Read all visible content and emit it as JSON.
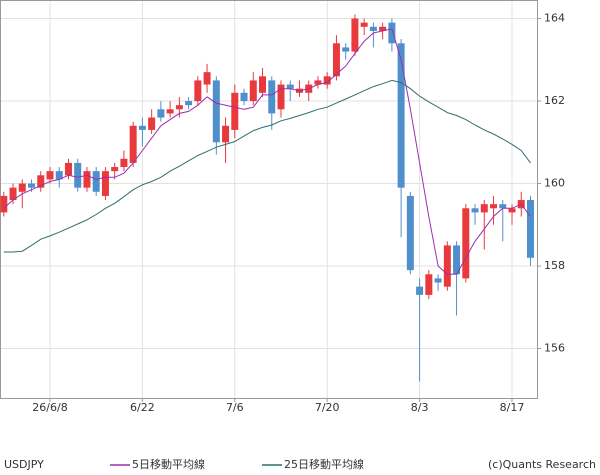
{
  "chart_data": {
    "type": "candlestick",
    "title": "USDJPY",
    "credit": "(c)Quants Research",
    "categories": [
      null,
      null,
      null,
      null,
      null,
      "26/6/8",
      null,
      null,
      null,
      null,
      null,
      null,
      null,
      null,
      null,
      "6/22",
      null,
      null,
      null,
      null,
      null,
      null,
      null,
      null,
      null,
      "7/6",
      null,
      null,
      null,
      null,
      null,
      null,
      null,
      null,
      null,
      "7/20",
      null,
      null,
      null,
      null,
      null,
      null,
      null,
      null,
      null,
      "8/3",
      null,
      null,
      null,
      null,
      null,
      null,
      null,
      null,
      null,
      "8/17",
      null,
      null
    ],
    "open": [
      159.3,
      159.6,
      159.8,
      160.0,
      159.9,
      160.1,
      160.3,
      160.2,
      160.5,
      159.9,
      160.3,
      159.7,
      160.3,
      160.4,
      160.5,
      161.4,
      161.3,
      161.8,
      161.7,
      161.8,
      162.0,
      162.0,
      162.4,
      162.5,
      161.0,
      161.3,
      162.2,
      162.0,
      162.2,
      162.5,
      161.8,
      162.4,
      162.2,
      162.2,
      162.4,
      162.4,
      162.6,
      163.3,
      163.2,
      163.8,
      163.8,
      163.7,
      163.9,
      163.4,
      159.7,
      157.5,
      157.3,
      157.7,
      157.5,
      158.5,
      157.7,
      159.4,
      159.3,
      159.4,
      159.5,
      159.3,
      159.4,
      159.6
    ],
    "high": [
      159.8,
      160.0,
      160.1,
      160.1,
      160.3,
      160.4,
      160.4,
      160.6,
      160.6,
      160.4,
      160.4,
      160.4,
      160.5,
      160.8,
      161.5,
      161.6,
      161.8,
      162.0,
      162.0,
      162.1,
      162.1,
      162.6,
      162.9,
      162.6,
      161.6,
      162.4,
      162.3,
      162.7,
      162.8,
      162.6,
      162.5,
      162.5,
      162.5,
      162.5,
      162.6,
      162.7,
      163.6,
      163.4,
      164.1,
      164.0,
      163.9,
      163.9,
      164.0,
      163.5,
      159.8,
      157.7,
      157.9,
      157.8,
      158.6,
      158.6,
      159.5,
      159.5,
      159.6,
      159.7,
      159.6,
      159.5,
      159.8,
      159.7
    ],
    "low": [
      159.2,
      159.5,
      159.4,
      159.8,
      159.8,
      160.0,
      159.9,
      160.1,
      159.8,
      159.8,
      159.7,
      159.6,
      160.1,
      160.3,
      160.4,
      160.9,
      161.2,
      161.5,
      161.6,
      161.6,
      161.8,
      161.9,
      162.2,
      160.7,
      160.5,
      161.1,
      161.9,
      161.9,
      162.1,
      161.3,
      161.6,
      162.0,
      162.1,
      162.0,
      162.3,
      162.3,
      162.5,
      163.0,
      163.1,
      163.6,
      163.3,
      163.5,
      163.2,
      158.7,
      157.8,
      155.2,
      157.2,
      157.4,
      157.4,
      156.8,
      157.6,
      159.0,
      158.4,
      159.0,
      158.6,
      159.0,
      159.2,
      158.0
    ],
    "close": [
      159.7,
      159.9,
      160.0,
      159.9,
      160.2,
      160.3,
      160.1,
      160.5,
      159.9,
      160.3,
      159.8,
      160.3,
      160.4,
      160.6,
      161.4,
      161.3,
      161.6,
      161.6,
      161.8,
      161.9,
      161.9,
      162.5,
      162.7,
      161.0,
      161.4,
      162.2,
      162.0,
      162.5,
      162.6,
      161.7,
      162.4,
      162.3,
      162.3,
      162.4,
      162.5,
      162.6,
      163.4,
      163.2,
      164.0,
      163.9,
      163.7,
      163.8,
      163.4,
      159.9,
      157.9,
      157.3,
      157.8,
      157.6,
      158.5,
      157.8,
      159.4,
      159.3,
      159.5,
      159.5,
      159.4,
      159.4,
      159.6,
      158.2
    ],
    "up_color": "#e8393c",
    "down_color": "#4f8fcb",
    "series": [
      {
        "name": "5日移動平均線",
        "color": "#9b2fb0",
        "values": [
          159.4,
          159.6,
          159.75,
          159.85,
          159.95,
          160.05,
          160.1,
          160.2,
          160.15,
          160.2,
          160.1,
          160.15,
          160.15,
          160.25,
          160.5,
          160.8,
          161.1,
          161.4,
          161.55,
          161.7,
          161.75,
          161.9,
          162.1,
          161.95,
          161.9,
          161.85,
          161.8,
          161.85,
          162.15,
          162.15,
          162.3,
          162.3,
          162.25,
          162.3,
          162.4,
          162.45,
          162.65,
          162.85,
          163.15,
          163.45,
          163.65,
          163.7,
          163.75,
          163.0,
          161.8,
          160.5,
          159.2,
          158.0,
          157.8,
          157.8,
          158.2,
          158.6,
          158.9,
          159.2,
          159.4,
          159.4,
          159.5,
          159.2
        ]
      },
      {
        "name": "25日移動平均線",
        "color": "#2e6e6e",
        "values": [
          158.34,
          158.34,
          158.36,
          158.5,
          158.65,
          158.73,
          158.82,
          158.92,
          159.02,
          159.12,
          159.25,
          159.4,
          159.52,
          159.68,
          159.85,
          159.97,
          160.05,
          160.15,
          160.3,
          160.42,
          160.55,
          160.68,
          160.78,
          160.88,
          160.95,
          161.02,
          161.15,
          161.28,
          161.36,
          161.42,
          161.52,
          161.58,
          161.65,
          161.72,
          161.8,
          161.85,
          161.95,
          162.05,
          162.15,
          162.25,
          162.35,
          162.42,
          162.5,
          162.45,
          162.3,
          162.12,
          161.98,
          161.85,
          161.72,
          161.65,
          161.55,
          161.42,
          161.3,
          161.2,
          161.08,
          160.95,
          160.8,
          160.5
        ]
      }
    ],
    "ylim": [
      154.8,
      164.45
    ],
    "yticks": [
      156,
      158,
      160,
      162,
      164
    ],
    "grid": true
  }
}
